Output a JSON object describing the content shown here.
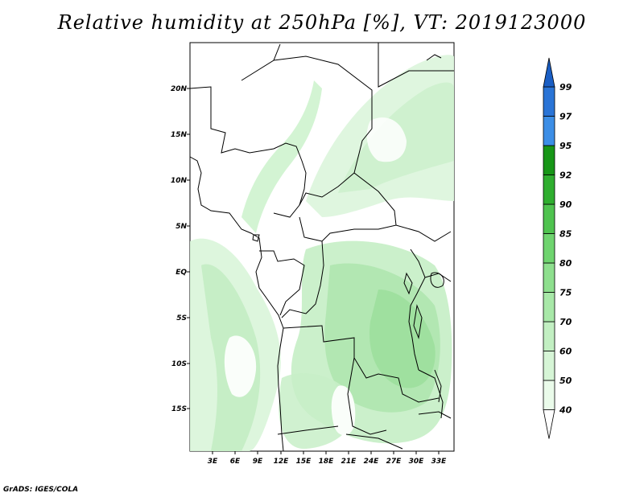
{
  "title": "Relative humidity at 250hPa [%], VT: 2019123000",
  "footer": "GrADS: IGES/COLA",
  "map": {
    "lon_labels": [
      "3E",
      "6E",
      "9E",
      "12E",
      "15E",
      "18E",
      "21E",
      "24E",
      "27E",
      "30E",
      "33E"
    ],
    "lat_labels": [
      "20N",
      "15N",
      "10N",
      "5N",
      "EQ",
      "5S",
      "10S",
      "15S"
    ]
  },
  "colorbar": {
    "levels": [
      "40",
      "50",
      "60",
      "70",
      "75",
      "80",
      "85",
      "90",
      "92",
      "95",
      "97",
      "99"
    ],
    "colors": [
      "#ffffff",
      "#eafbea",
      "#d6f5d6",
      "#c2efc2",
      "#a8e8a8",
      "#8edf8e",
      "#6fd46f",
      "#4fc34f",
      "#2fae2f",
      "#179617",
      "#3c8ee6",
      "#2a74d6",
      "#1a5ec4"
    ]
  },
  "colors": {
    "land_outline": "#000000",
    "humidity_light": "#e6f9e6",
    "humidity_mid": "#c6efc6",
    "humidity_strong": "#a2e2a2"
  }
}
